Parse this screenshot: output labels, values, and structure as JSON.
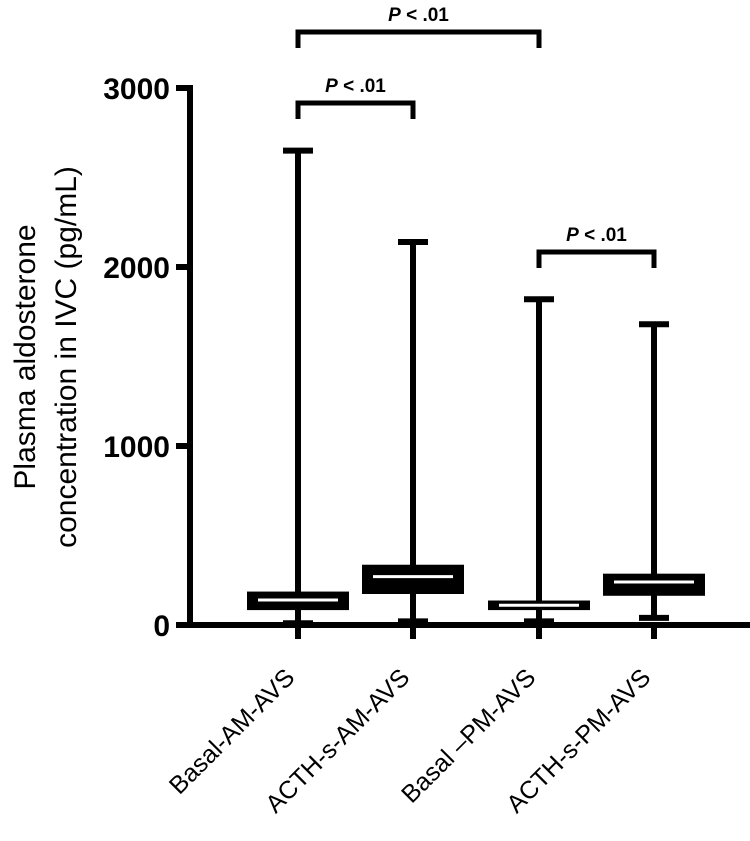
{
  "chart_data": {
    "type": "box",
    "ylabel_lines": [
      "Plasma aldosterone",
      "concentration in IVC (pg/mL)"
    ],
    "ylim": [
      0,
      3000
    ],
    "yticks": [
      0,
      1000,
      2000,
      3000
    ],
    "ytick_labels": [
      "0",
      "1000",
      "2000",
      "3000"
    ],
    "categories": [
      "Basal-AM-AVS",
      "ACTH-s-AM-AVS",
      "Basal –PM-AVS",
      "ACTH-s-PM-AVS"
    ],
    "boxes": [
      {
        "category": "Basal-AM-AVS",
        "min": 10,
        "q1": 100,
        "median": 140,
        "q3": 170,
        "max": 2650
      },
      {
        "category": "ACTH-s-AM-AVS",
        "min": 20,
        "q1": 190,
        "median": 270,
        "q3": 320,
        "max": 2140
      },
      {
        "category": "Basal –PM-AVS",
        "min": 20,
        "q1": 100,
        "median": 110,
        "q3": 120,
        "max": 1820
      },
      {
        "category": "ACTH-s-PM-AVS",
        "min": 40,
        "q1": 180,
        "median": 240,
        "q3": 270,
        "max": 1680
      }
    ],
    "significance": [
      {
        "from": 0,
        "to": 2,
        "label": "P < .01"
      },
      {
        "from": 0,
        "to": 1,
        "label": "P < .01"
      },
      {
        "from": 2,
        "to": 3,
        "label": "P < .01"
      }
    ],
    "colors": {
      "stroke": "#000000",
      "median_line": "#ffffff",
      "background": "#ffffff"
    }
  }
}
